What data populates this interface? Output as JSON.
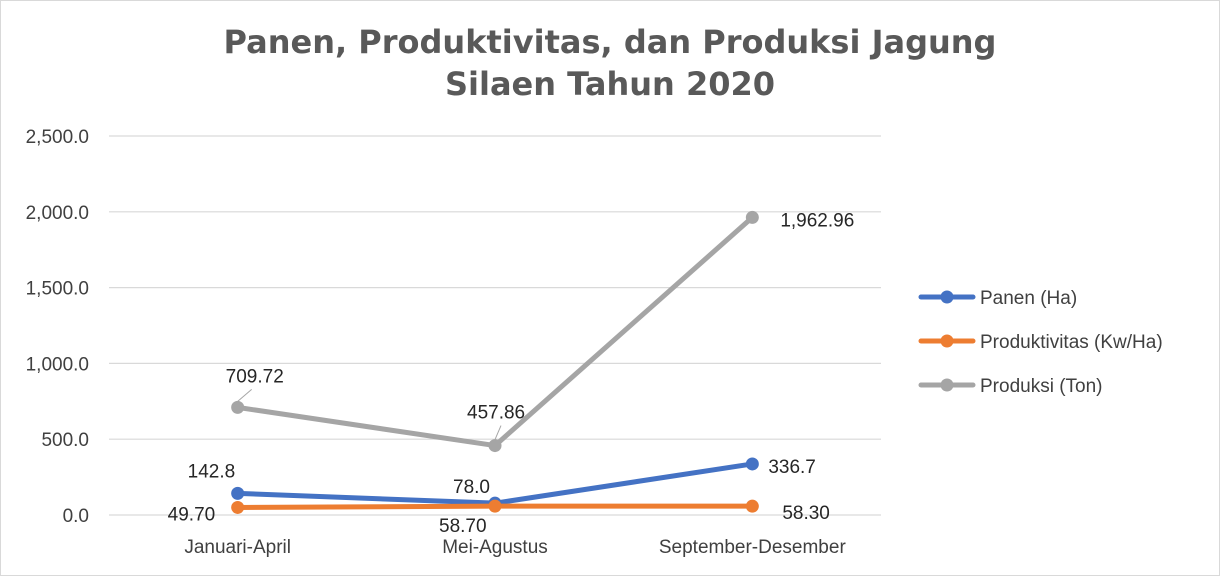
{
  "chart_data": {
    "type": "line",
    "title": "Panen, Produktivitas, dan Produksi Jagung Silaen Tahun 2020",
    "title_lines": [
      "Panen, Produktivitas, dan Produksi Jagung",
      "Silaen Tahun 2020"
    ],
    "categories": [
      "Januari-April",
      "Mei-Agustus",
      "September-Desember"
    ],
    "ylim": [
      0,
      2500
    ],
    "yticks": [
      0,
      500,
      1000,
      1500,
      2000,
      2500
    ],
    "ytick_labels": [
      "0.0",
      "500.0",
      "1,000.0",
      "1,500.0",
      "2,000.0",
      "2,500.0"
    ],
    "grid": true,
    "legend": "right",
    "series": [
      {
        "name": "Panen (Ha)",
        "color": "#4472c4",
        "values": [
          142.8,
          78.0,
          336.7
        ],
        "labels": [
          "142.8",
          "78.0",
          "336.7"
        ]
      },
      {
        "name": "Produktivitas (Kw/Ha)",
        "color": "#ed7d31",
        "values": [
          49.7,
          58.7,
          58.3
        ],
        "labels": [
          "49.70",
          "58.70",
          "58.30"
        ]
      },
      {
        "name": "Produksi (Ton)",
        "color": "#a5a5a5",
        "values": [
          709.72,
          457.86,
          1962.96
        ],
        "labels": [
          "709.72",
          "457.86",
          "1,962.96"
        ]
      }
    ]
  }
}
